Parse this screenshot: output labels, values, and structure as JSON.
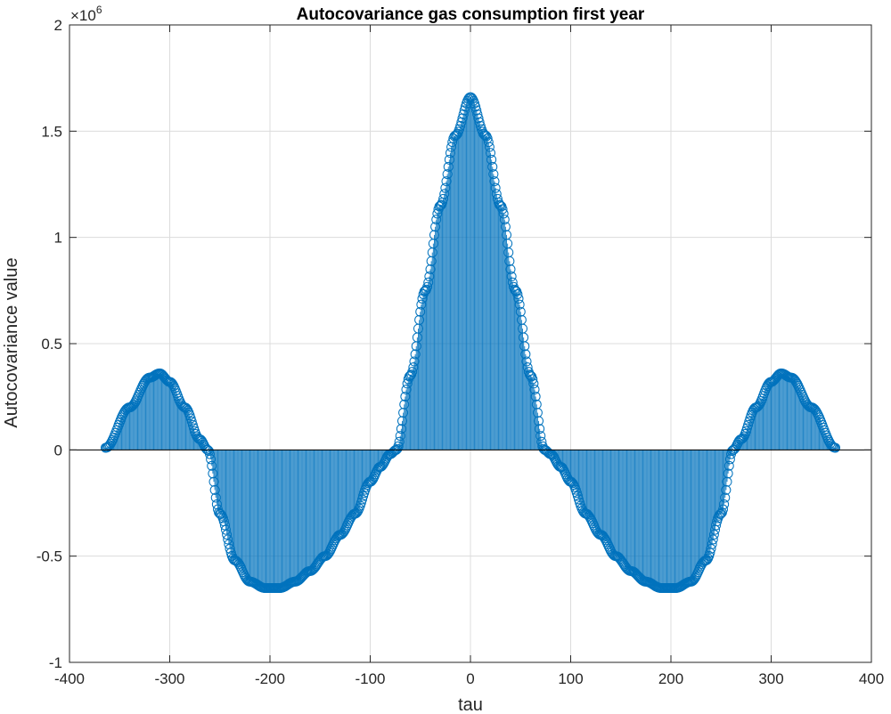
{
  "chart_data": {
    "type": "stem",
    "title": "Autocovariance gas consumption first year",
    "xlabel": "tau",
    "ylabel": "Autocovariance value",
    "xlim": [
      -400,
      400
    ],
    "ylim": [
      -1,
      2
    ],
    "y_scale_exponent_label": {
      "base": "×10",
      "exponent": "6"
    },
    "x_ticks": [
      -400,
      -300,
      -200,
      -100,
      0,
      100,
      200,
      300,
      400
    ],
    "x_tick_labels": [
      "-400",
      "-300",
      "-200",
      "-100",
      "0",
      "100",
      "200",
      "300",
      "400"
    ],
    "y_ticks": [
      -1,
      -0.5,
      0,
      0.5,
      1,
      1.5,
      2
    ],
    "y_tick_labels": [
      "-1",
      "-0.5",
      "0",
      "0.5",
      "1",
      "1.5",
      "2"
    ],
    "grid": true,
    "marker": "open-circle",
    "color": "#0072BD",
    "series": [
      {
        "values_note": "y in units of 1e6, symmetric about tau=0, tau from -364 to 364",
        "x": [
          -364,
          -340,
          -320,
          -310,
          -300,
          -285,
          -270,
          -262,
          -250,
          -235,
          -220,
          -205,
          -190,
          -175,
          -160,
          -145,
          -130,
          -115,
          -100,
          -90,
          -80,
          -74,
          -60,
          -45,
          -30,
          -15,
          0,
          15,
          30,
          45,
          60,
          74,
          80,
          90,
          100,
          115,
          130,
          145,
          160,
          175,
          190,
          205,
          220,
          235,
          250,
          262,
          270,
          285,
          300,
          310,
          320,
          340,
          364
        ],
        "y": [
          0.01,
          0.2,
          0.34,
          0.36,
          0.32,
          0.2,
          0.05,
          0.0,
          -0.3,
          -0.52,
          -0.62,
          -0.65,
          -0.65,
          -0.62,
          -0.57,
          -0.5,
          -0.4,
          -0.3,
          -0.15,
          -0.08,
          -0.02,
          0.0,
          0.35,
          0.75,
          1.15,
          1.48,
          1.66,
          1.48,
          1.15,
          0.75,
          0.35,
          0.0,
          -0.02,
          -0.08,
          -0.15,
          -0.3,
          -0.4,
          -0.5,
          -0.57,
          -0.62,
          -0.65,
          -0.65,
          -0.62,
          -0.52,
          -0.3,
          0.0,
          0.05,
          0.2,
          0.32,
          0.36,
          0.34,
          0.2,
          0.01
        ]
      }
    ]
  }
}
